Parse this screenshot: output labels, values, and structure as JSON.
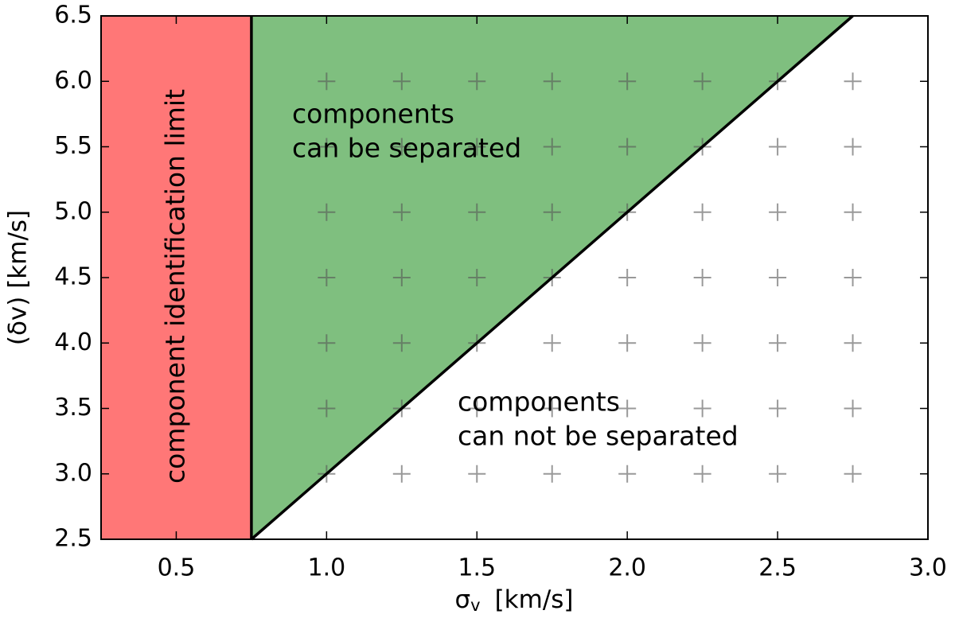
{
  "chart_data": {
    "type": "region-scatter",
    "xlabel_parts": [
      "σ",
      "v",
      "[km/s]"
    ],
    "ylabel": "(δv)  [km/s]",
    "xlim": [
      0.25,
      3.0
    ],
    "ylim": [
      2.5,
      6.5
    ],
    "xticks": [
      0.5,
      {
        "value": 1,
        "label": "1.0"
      },
      1.5,
      {
        "value": 2,
        "label": "2.0"
      },
      2.5,
      {
        "value": 3,
        "label": "3.0"
      }
    ],
    "yticks": [
      2.5,
      {
        "value": 3,
        "label": "3.0"
      },
      3.5,
      {
        "value": 4,
        "label": "4.0"
      },
      4.5,
      {
        "value": 5,
        "label": "5.0"
      },
      5.5,
      {
        "value": 6,
        "label": "6.0"
      },
      6.5
    ],
    "regions": [
      {
        "color": "#ff7777",
        "x": [
          0.25,
          0.75,
          0.75,
          0.25
        ],
        "y": [
          2.5,
          2.5,
          6.5,
          6.5
        ]
      },
      {
        "color": "#7fbf7f",
        "x": [
          0.75,
          0.75,
          2.75
        ],
        "y": [
          2.5,
          6.5,
          6.5
        ]
      }
    ],
    "lines": [
      {
        "color": "#000000",
        "x": [
          0.75,
          0.75
        ],
        "y": [
          2.5,
          6.5
        ]
      },
      {
        "color": "#000000",
        "x": [
          0.75,
          2.75
        ],
        "y": [
          2.5,
          6.5
        ]
      }
    ],
    "series": [
      {
        "color": "#555555",
        "x": [
          1,
          1.25,
          1.5,
          1.75,
          2,
          2.25,
          2.5,
          2.75,
          1,
          1.25,
          1.5,
          1.75,
          2,
          2.25,
          2.5,
          2.75,
          1,
          1.25,
          1.5,
          1.75,
          2,
          2.25,
          2.5,
          2.75,
          1,
          1.25,
          1.5,
          1.75,
          2,
          2.25,
          2.5,
          2.75,
          1,
          1.25,
          1.5,
          1.75,
          2,
          2.25,
          2.5,
          2.75,
          1,
          1.25,
          1.5,
          1.75,
          2,
          2.25,
          2.5,
          2.75,
          1,
          1.25,
          1.5,
          1.75,
          2,
          2.25,
          2.5,
          2.75
        ],
        "y": [
          3,
          3,
          3,
          3,
          3,
          3,
          3,
          3,
          3.5,
          3.5,
          3.5,
          3.5,
          3.5,
          3.5,
          3.5,
          3.5,
          4,
          4,
          4,
          4,
          4,
          4,
          4,
          4,
          4.5,
          4.5,
          4.5,
          4.5,
          4.5,
          4.5,
          4.5,
          4.5,
          5,
          5,
          5,
          5,
          5,
          5,
          5,
          5,
          5.5,
          5.5,
          5.5,
          5.5,
          5.5,
          5.5,
          5.5,
          5.5,
          6,
          6,
          6,
          6,
          6,
          6,
          6,
          6
        ]
      }
    ],
    "annotations": [
      {
        "lines": [
          "component identification limit"
        ]
      },
      {
        "lines": [
          "components",
          "can be separated"
        ]
      },
      {
        "lines": [
          "components",
          "can not be separated"
        ]
      }
    ]
  }
}
